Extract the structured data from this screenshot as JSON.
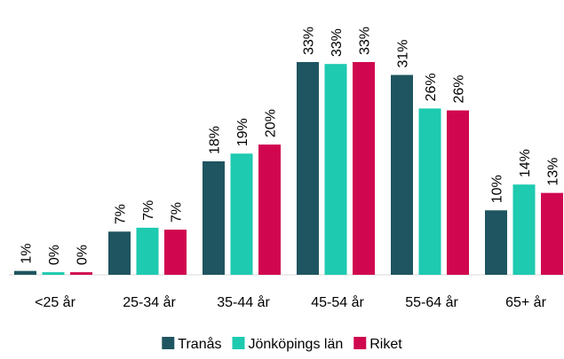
{
  "chart_data": {
    "type": "bar",
    "categories": [
      "<25 år",
      "25-34 år",
      "35-44 år",
      "45-54 år",
      "55-64 år",
      "65+ år"
    ],
    "series": [
      {
        "name": "Tranås",
        "color": "#1f5560",
        "values": [
          0.6,
          6.7,
          17.6,
          33.0,
          31.0,
          10.0
        ],
        "value_labels": [
          "1%",
          "7%",
          "18%",
          "33%",
          "31%",
          "10%"
        ]
      },
      {
        "name": "Jönköpings län",
        "color": "#1ecab0",
        "values": [
          0.4,
          7.3,
          18.8,
          32.7,
          25.8,
          14.0
        ],
        "value_labels": [
          "0%",
          "7%",
          "19%",
          "33%",
          "26%",
          "14%"
        ]
      },
      {
        "name": "Riket",
        "color": "#d0074f",
        "values": [
          0.4,
          7.0,
          20.2,
          33.0,
          25.5,
          12.7
        ],
        "value_labels": [
          "0%",
          "7%",
          "20%",
          "33%",
          "26%",
          "13%"
        ]
      }
    ]
  }
}
